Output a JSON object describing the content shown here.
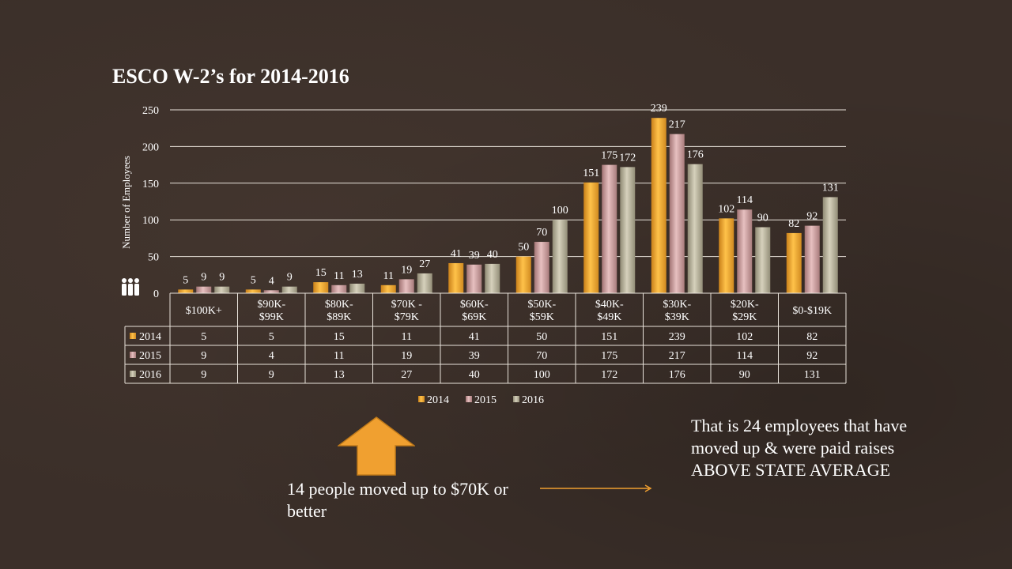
{
  "slide": {
    "title": "ESCO W-2’s for 2014-2016",
    "note_left": "14 people moved up to $70K or better",
    "note_right_lines": [
      "That is 24 employees  that have",
      "moved up  & were paid raises",
      "ABOVE STATE  AVERAGE"
    ]
  },
  "icons": {
    "up_arrow": "arrow-up-icon",
    "right_arrow": "arrow-right-icon",
    "people": "people-icon"
  },
  "colors": {
    "background": "#3b2f29",
    "series_2014": "#f0a732",
    "series_2015": "#c69a9a",
    "series_2016": "#b3ad98",
    "accent_arrow": "#f0a030"
  },
  "chart_data": {
    "type": "bar",
    "title": "",
    "xlabel": "",
    "ylabel": "Number of Employees",
    "ylim": [
      0,
      250
    ],
    "yticks": [
      0,
      50,
      100,
      150,
      200,
      250
    ],
    "grid": true,
    "legend_position": "bottom",
    "data_table": true,
    "categories": [
      "$100K+",
      "$90K-\n$99K",
      "$80K-\n$89K",
      "$70K -\n$79K",
      "$60K-\n$69K",
      "$50K-\n$59K",
      "$40K-\n$49K",
      "$30K-\n$39K",
      "$20K-\n$29K",
      "$0-$19K"
    ],
    "series": [
      {
        "name": "2014",
        "values": [
          5,
          5,
          15,
          11,
          41,
          50,
          151,
          239,
          102,
          82
        ]
      },
      {
        "name": "2015",
        "values": [
          9,
          4,
          11,
          19,
          39,
          70,
          175,
          217,
          114,
          92
        ]
      },
      {
        "name": "2016",
        "values": [
          9,
          9,
          13,
          27,
          40,
          100,
          172,
          176,
          90,
          131
        ]
      }
    ]
  }
}
